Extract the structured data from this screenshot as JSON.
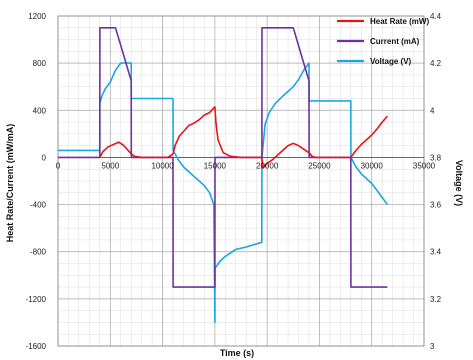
{
  "chart_data": {
    "type": "line",
    "xlabel": "Time (s)",
    "ylabel": "Heat Rate/Current (mW/mA)",
    "y2label": "Voltage (V)",
    "xlim": [
      0,
      35000
    ],
    "ylim": [
      -1600,
      1200
    ],
    "y2lim": [
      3.0,
      4.4
    ],
    "x_ticks": [
      0,
      5000,
      10000,
      15000,
      20000,
      25000,
      30000,
      35000
    ],
    "x_tick_labels": [
      "0",
      "5000",
      "10000",
      "15000",
      "20000",
      "25000",
      "30000",
      "35000"
    ],
    "y_ticks": [
      -1600,
      -1200,
      -800,
      -400,
      0,
      400,
      800,
      1200
    ],
    "y_tick_labels": [
      "-1600",
      "-1200",
      "-800",
      "-400",
      "0",
      "400",
      "800",
      "1200"
    ],
    "y2_ticks": [
      3.0,
      3.2,
      3.4,
      3.6,
      3.8,
      4.0,
      4.2,
      4.4
    ],
    "y2_tick_labels": [
      "3",
      "3.2",
      "3.4",
      "3.6",
      "3.8",
      "4",
      "4.2",
      "4.4"
    ],
    "grid": true,
    "legend_position": "top-right",
    "series": [
      {
        "name": "Heat Rate (mW)",
        "color": "#e8141b",
        "axis": "left",
        "x": [
          4000,
          4300,
          4800,
          5300,
          5800,
          6300,
          6800,
          7000,
          7300,
          8000,
          9000,
          10500,
          11000,
          11200,
          11600,
          12000,
          12500,
          13000,
          13500,
          14000,
          14500,
          15000,
          15100,
          15300,
          15800,
          16500,
          17500,
          19500,
          19600,
          20000,
          20500,
          21000,
          21500,
          22000,
          22500,
          23000,
          23500,
          24000,
          24300,
          24600,
          25500,
          27000,
          28000,
          28500,
          29000,
          29500,
          30000,
          30500,
          31000,
          31500
        ],
        "values": [
          0,
          50,
          90,
          110,
          130,
          100,
          50,
          30,
          10,
          0,
          0,
          0,
          30,
          100,
          180,
          220,
          270,
          290,
          320,
          360,
          380,
          430,
          300,
          150,
          40,
          10,
          0,
          0,
          -90,
          -50,
          -20,
          20,
          60,
          100,
          120,
          100,
          70,
          40,
          10,
          0,
          0,
          0,
          0,
          60,
          110,
          150,
          190,
          240,
          300,
          350
        ]
      },
      {
        "name": "Current (mA)",
        "color": "#7030a0",
        "axis": "left",
        "x": [
          0,
          4000,
          4010,
          5000,
          5500,
          6500,
          7000,
          7010,
          11000,
          11010,
          15000,
          15010,
          19500,
          19510,
          22000,
          22500,
          23500,
          24000,
          24010,
          28000,
          28010,
          31500
        ],
        "values": [
          0,
          0,
          1100,
          1100,
          1100,
          800,
          650,
          0,
          0,
          -1100,
          -1100,
          0,
          0,
          1100,
          1100,
          1100,
          800,
          650,
          0,
          0,
          -1100,
          -1100
        ]
      },
      {
        "name": "Voltage (V)",
        "color": "#1aa7e0",
        "axis": "right",
        "x": [
          0,
          3990,
          4000,
          4200,
          4500,
          5000,
          5500,
          6000,
          6500,
          7000,
          7010,
          9000,
          11000,
          11010,
          11500,
          12000,
          12500,
          13000,
          13500,
          14000,
          14500,
          14900,
          15000,
          15010,
          15500,
          16000,
          17000,
          18000,
          19490,
          19500,
          19800,
          20200,
          20800,
          21500,
          22000,
          22500,
          23000,
          23500,
          24000,
          24010,
          26000,
          28000,
          28010,
          28500,
          29000,
          29500,
          30000,
          30500,
          31000,
          31500
        ],
        "values": [
          3.83,
          3.83,
          4.03,
          4.06,
          4.09,
          4.12,
          4.17,
          4.2,
          4.2,
          4.2,
          4.05,
          4.05,
          4.05,
          3.83,
          3.79,
          3.76,
          3.74,
          3.72,
          3.7,
          3.68,
          3.65,
          3.6,
          3.1,
          3.33,
          3.36,
          3.38,
          3.41,
          3.42,
          3.44,
          3.8,
          3.94,
          3.99,
          4.03,
          4.06,
          4.08,
          4.1,
          4.13,
          4.17,
          4.2,
          4.04,
          4.04,
          4.04,
          3.8,
          3.76,
          3.73,
          3.71,
          3.69,
          3.66,
          3.63,
          3.6
        ]
      }
    ]
  }
}
